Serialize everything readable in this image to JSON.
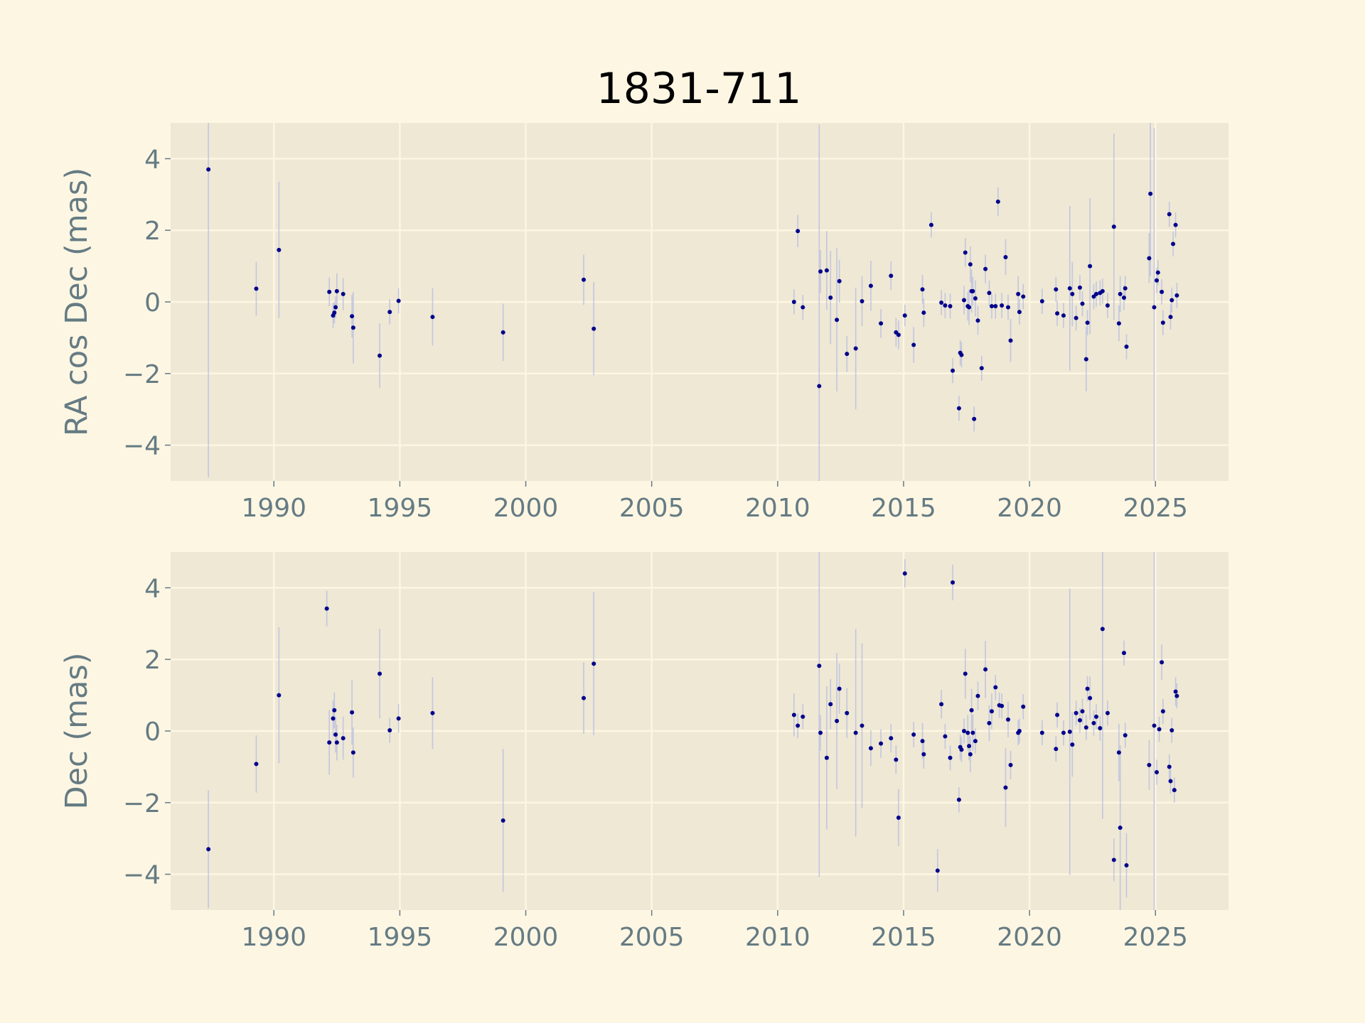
{
  "figure": {
    "title": "1831-711",
    "background": "#fdf6e3",
    "axes_background": "#eee8d5",
    "grid_color": "#fdf6e3",
    "marker_color": "#00008b",
    "errorbar_color": "#b4bbe0",
    "text_color": "#657b83"
  },
  "chart_data": [
    {
      "type": "scatter",
      "ylabel": "RA cos Dec (mas)",
      "xlim": [
        1985.9,
        2027.9
      ],
      "ylim": [
        -5,
        5
      ],
      "xticks": [
        1990,
        1995,
        2000,
        2005,
        2010,
        2015,
        2020,
        2025
      ],
      "yticks": [
        4,
        2,
        0,
        -2,
        -4
      ],
      "ytick_labels": [
        "4",
        "2",
        "0",
        "−2",
        "−4"
      ],
      "grid": true,
      "points": [
        {
          "x": 1987.4,
          "y": 3.7,
          "err": 8.6
        },
        {
          "x": 1989.3,
          "y": 0.37,
          "err": 0.75
        },
        {
          "x": 1990.2,
          "y": 1.45,
          "err": 1.9
        },
        {
          "x": 1992.2,
          "y": 0.28,
          "err": 0.4
        },
        {
          "x": 1992.35,
          "y": -0.38,
          "err": 0.35
        },
        {
          "x": 1992.4,
          "y": -0.3,
          "err": 0.3
        },
        {
          "x": 1992.45,
          "y": -0.15,
          "err": 0.3
        },
        {
          "x": 1992.5,
          "y": 0.3,
          "err": 0.5
        },
        {
          "x": 1992.75,
          "y": 0.22,
          "err": 0.45
        },
        {
          "x": 1993.1,
          "y": -0.4,
          "err": 0.6
        },
        {
          "x": 1993.15,
          "y": -0.72,
          "err": 1.0
        },
        {
          "x": 1994.2,
          "y": -1.5,
          "err": 0.9
        },
        {
          "x": 1994.6,
          "y": -0.28,
          "err": 0.35
        },
        {
          "x": 1994.95,
          "y": 0.03,
          "err": 0.35
        },
        {
          "x": 1996.3,
          "y": -0.42,
          "err": 0.8
        },
        {
          "x": 1999.1,
          "y": -0.85,
          "err": 0.8
        },
        {
          "x": 2002.3,
          "y": 0.62,
          "err": 0.7
        },
        {
          "x": 2002.7,
          "y": -0.75,
          "err": 1.3
        },
        {
          "x": 2010.65,
          "y": 0.0,
          "err": 0.35
        },
        {
          "x": 2010.8,
          "y": 1.98,
          "err": 0.45
        },
        {
          "x": 2011.0,
          "y": -0.15,
          "err": 0.35
        },
        {
          "x": 2011.65,
          "y": -2.35,
          "err": 7.3
        },
        {
          "x": 2011.7,
          "y": 0.85,
          "err": 0.6
        },
        {
          "x": 2011.95,
          "y": 0.88,
          "err": 1.1
        },
        {
          "x": 2012.1,
          "y": 0.12,
          "err": 1.3
        },
        {
          "x": 2012.35,
          "y": -0.5,
          "err": 2.0
        },
        {
          "x": 2012.45,
          "y": 0.58,
          "err": 0.6
        },
        {
          "x": 2012.75,
          "y": -1.45,
          "err": 0.5
        },
        {
          "x": 2013.1,
          "y": -1.3,
          "err": 1.7
        },
        {
          "x": 2013.35,
          "y": 0.02,
          "err": 0.7
        },
        {
          "x": 2013.7,
          "y": 0.45,
          "err": 0.7
        },
        {
          "x": 2014.1,
          "y": -0.6,
          "err": 0.4
        },
        {
          "x": 2014.5,
          "y": 0.73,
          "err": 0.4
        },
        {
          "x": 2014.7,
          "y": -0.85,
          "err": 0.4
        },
        {
          "x": 2014.8,
          "y": -0.92,
          "err": 0.4
        },
        {
          "x": 2015.05,
          "y": -0.38,
          "err": 0.3
        },
        {
          "x": 2015.4,
          "y": -1.2,
          "err": 0.5
        },
        {
          "x": 2015.75,
          "y": 0.35,
          "err": 0.4
        },
        {
          "x": 2015.8,
          "y": -0.3,
          "err": 0.4
        },
        {
          "x": 2016.1,
          "y": 2.15,
          "err": 0.35
        },
        {
          "x": 2016.5,
          "y": -0.02,
          "err": 0.35
        },
        {
          "x": 2016.65,
          "y": -0.1,
          "err": 0.35
        },
        {
          "x": 2016.85,
          "y": -0.12,
          "err": 0.35
        },
        {
          "x": 2016.95,
          "y": -1.92,
          "err": 0.35
        },
        {
          "x": 2017.2,
          "y": -2.97,
          "err": 0.35
        },
        {
          "x": 2017.25,
          "y": -1.42,
          "err": 0.35
        },
        {
          "x": 2017.3,
          "y": -1.48,
          "err": 0.35
        },
        {
          "x": 2017.4,
          "y": 0.05,
          "err": 0.4
        },
        {
          "x": 2017.45,
          "y": 1.38,
          "err": 0.4
        },
        {
          "x": 2017.55,
          "y": -0.12,
          "err": 0.4
        },
        {
          "x": 2017.6,
          "y": -0.15,
          "err": 0.5
        },
        {
          "x": 2017.65,
          "y": 1.05,
          "err": 0.5
        },
        {
          "x": 2017.7,
          "y": 0.3,
          "err": 0.6
        },
        {
          "x": 2017.75,
          "y": 0.3,
          "err": 0.4
        },
        {
          "x": 2017.8,
          "y": -3.27,
          "err": 0.35
        },
        {
          "x": 2017.85,
          "y": 0.1,
          "err": 0.5
        },
        {
          "x": 2017.95,
          "y": -0.52,
          "err": 0.4
        },
        {
          "x": 2018.1,
          "y": -1.85,
          "err": 0.35
        },
        {
          "x": 2018.25,
          "y": 0.92,
          "err": 0.4
        },
        {
          "x": 2018.4,
          "y": 0.25,
          "err": 0.35
        },
        {
          "x": 2018.5,
          "y": -0.12,
          "err": 0.35
        },
        {
          "x": 2018.65,
          "y": -0.12,
          "err": 0.35
        },
        {
          "x": 2018.75,
          "y": 2.8,
          "err": 0.4
        },
        {
          "x": 2018.9,
          "y": -0.1,
          "err": 0.35
        },
        {
          "x": 2019.05,
          "y": 1.25,
          "err": 0.5
        },
        {
          "x": 2019.15,
          "y": -0.15,
          "err": 0.35
        },
        {
          "x": 2019.25,
          "y": -1.08,
          "err": 0.6
        },
        {
          "x": 2019.55,
          "y": 0.22,
          "err": 0.5
        },
        {
          "x": 2019.6,
          "y": -0.28,
          "err": 0.35
        },
        {
          "x": 2019.75,
          "y": 0.15,
          "err": 0.35
        },
        {
          "x": 2020.5,
          "y": 0.02,
          "err": 0.35
        },
        {
          "x": 2021.05,
          "y": 0.35,
          "err": 0.35
        },
        {
          "x": 2021.1,
          "y": -0.32,
          "err": 0.35
        },
        {
          "x": 2021.35,
          "y": -0.38,
          "err": 0.35
        },
        {
          "x": 2021.6,
          "y": 0.38,
          "err": 2.3
        },
        {
          "x": 2021.7,
          "y": 0.22,
          "err": 0.9
        },
        {
          "x": 2021.85,
          "y": -0.45,
          "err": 0.35
        },
        {
          "x": 2022.0,
          "y": 0.4,
          "err": 0.35
        },
        {
          "x": 2022.1,
          "y": -0.05,
          "err": 0.35
        },
        {
          "x": 2022.25,
          "y": -1.6,
          "err": 0.9
        },
        {
          "x": 2022.3,
          "y": -0.58,
          "err": 0.35
        },
        {
          "x": 2022.4,
          "y": 1.0,
          "err": 1.9
        },
        {
          "x": 2022.55,
          "y": 0.15,
          "err": 0.35
        },
        {
          "x": 2022.65,
          "y": 0.22,
          "err": 0.35
        },
        {
          "x": 2022.8,
          "y": 0.25,
          "err": 0.35
        },
        {
          "x": 2022.9,
          "y": 0.3,
          "err": 0.35
        },
        {
          "x": 2023.1,
          "y": -0.1,
          "err": 0.35
        },
        {
          "x": 2023.35,
          "y": 2.1,
          "err": 2.6
        },
        {
          "x": 2023.55,
          "y": -0.6,
          "err": 0.5
        },
        {
          "x": 2023.6,
          "y": 0.22,
          "err": 0.5
        },
        {
          "x": 2023.75,
          "y": 0.12,
          "err": 0.35
        },
        {
          "x": 2023.8,
          "y": 0.38,
          "err": 0.35
        },
        {
          "x": 2023.85,
          "y": -1.25,
          "err": 0.35
        },
        {
          "x": 2024.75,
          "y": 1.22,
          "err": 0.7
        },
        {
          "x": 2024.8,
          "y": 3.02,
          "err": 2.3
        },
        {
          "x": 2024.95,
          "y": -0.15,
          "err": 5.0
        },
        {
          "x": 2025.05,
          "y": 0.6,
          "err": 0.35
        },
        {
          "x": 2025.1,
          "y": 0.82,
          "err": 0.35
        },
        {
          "x": 2025.25,
          "y": 0.28,
          "err": 0.35
        },
        {
          "x": 2025.3,
          "y": -0.58,
          "err": 0.35
        },
        {
          "x": 2025.55,
          "y": 2.45,
          "err": 0.35
        },
        {
          "x": 2025.6,
          "y": -0.42,
          "err": 0.35
        },
        {
          "x": 2025.65,
          "y": 0.05,
          "err": 0.35
        },
        {
          "x": 2025.7,
          "y": 1.62,
          "err": 0.35
        },
        {
          "x": 2025.8,
          "y": 2.15,
          "err": 0.35
        },
        {
          "x": 2025.85,
          "y": 0.18,
          "err": 0.35
        }
      ]
    },
    {
      "type": "scatter",
      "ylabel": "Dec (mas)",
      "xlim": [
        1985.9,
        2027.9
      ],
      "ylim": [
        -5,
        5
      ],
      "xticks": [
        1990,
        1995,
        2000,
        2005,
        2010,
        2015,
        2020,
        2025
      ],
      "yticks": [
        4,
        2,
        0,
        -2,
        -4
      ],
      "ytick_labels": [
        "4",
        "2",
        "0",
        "−2",
        "−4"
      ],
      "grid": true,
      "points": [
        {
          "x": 1987.4,
          "y": -3.3,
          "err": 1.65
        },
        {
          "x": 1989.3,
          "y": -0.92,
          "err": 0.8
        },
        {
          "x": 1990.2,
          "y": 1.0,
          "err": 1.9
        },
        {
          "x": 1992.1,
          "y": 3.42,
          "err": 0.5
        },
        {
          "x": 1992.2,
          "y": -0.32,
          "err": 0.9
        },
        {
          "x": 1992.35,
          "y": 0.35,
          "err": 0.5
        },
        {
          "x": 1992.4,
          "y": 0.58,
          "err": 0.5
        },
        {
          "x": 1992.45,
          "y": -0.1,
          "err": 0.5
        },
        {
          "x": 1992.5,
          "y": -0.32,
          "err": 0.5
        },
        {
          "x": 1992.75,
          "y": -0.2,
          "err": 0.6
        },
        {
          "x": 1993.1,
          "y": 0.52,
          "err": 0.9
        },
        {
          "x": 1993.15,
          "y": -0.6,
          "err": 0.7
        },
        {
          "x": 1994.2,
          "y": 1.6,
          "err": 1.25
        },
        {
          "x": 1994.6,
          "y": 0.02,
          "err": 0.35
        },
        {
          "x": 1994.95,
          "y": 0.35,
          "err": 0.4
        },
        {
          "x": 1996.3,
          "y": 0.5,
          "err": 1.0
        },
        {
          "x": 1999.1,
          "y": -2.5,
          "err": 2.0
        },
        {
          "x": 2002.3,
          "y": 0.92,
          "err": 1.0
        },
        {
          "x": 2002.7,
          "y": 1.88,
          "err": 2.0
        },
        {
          "x": 2010.65,
          "y": 0.45,
          "err": 0.6
        },
        {
          "x": 2010.8,
          "y": 0.15,
          "err": 0.35
        },
        {
          "x": 2011.0,
          "y": 0.4,
          "err": 0.35
        },
        {
          "x": 2011.65,
          "y": 1.82,
          "err": 5.9
        },
        {
          "x": 2011.7,
          "y": -0.05,
          "err": 0.5
        },
        {
          "x": 2011.95,
          "y": -0.75,
          "err": 2.0
        },
        {
          "x": 2012.1,
          "y": 0.75,
          "err": 0.7
        },
        {
          "x": 2012.35,
          "y": 0.28,
          "err": 1.9
        },
        {
          "x": 2012.45,
          "y": 1.18,
          "err": 0.7
        },
        {
          "x": 2012.75,
          "y": 0.5,
          "err": 0.7
        },
        {
          "x": 2013.1,
          "y": -0.05,
          "err": 2.9
        },
        {
          "x": 2013.35,
          "y": 0.15,
          "err": 2.3
        },
        {
          "x": 2013.7,
          "y": -0.48,
          "err": 0.5
        },
        {
          "x": 2014.1,
          "y": -0.35,
          "err": 0.4
        },
        {
          "x": 2014.5,
          "y": -0.2,
          "err": 0.4
        },
        {
          "x": 2014.7,
          "y": -0.8,
          "err": 0.4
        },
        {
          "x": 2014.8,
          "y": -2.42,
          "err": 0.8
        },
        {
          "x": 2015.05,
          "y": 4.4,
          "err": 0.4
        },
        {
          "x": 2015.4,
          "y": -0.1,
          "err": 0.35
        },
        {
          "x": 2015.75,
          "y": -0.28,
          "err": 0.5
        },
        {
          "x": 2015.8,
          "y": -0.65,
          "err": 0.4
        },
        {
          "x": 2016.35,
          "y": -3.9,
          "err": 0.6
        },
        {
          "x": 2016.5,
          "y": 0.75,
          "err": 0.4
        },
        {
          "x": 2016.65,
          "y": -0.15,
          "err": 0.35
        },
        {
          "x": 2016.85,
          "y": -0.75,
          "err": 0.35
        },
        {
          "x": 2016.95,
          "y": 4.15,
          "err": 0.5
        },
        {
          "x": 2017.2,
          "y": -1.92,
          "err": 0.35
        },
        {
          "x": 2017.25,
          "y": -0.45,
          "err": 0.35
        },
        {
          "x": 2017.3,
          "y": -0.52,
          "err": 0.35
        },
        {
          "x": 2017.4,
          "y": 0.0,
          "err": 0.35
        },
        {
          "x": 2017.45,
          "y": 1.6,
          "err": 0.7
        },
        {
          "x": 2017.55,
          "y": -0.05,
          "err": 0.5
        },
        {
          "x": 2017.6,
          "y": -0.42,
          "err": 0.4
        },
        {
          "x": 2017.65,
          "y": -0.65,
          "err": 0.5
        },
        {
          "x": 2017.7,
          "y": 0.58,
          "err": 0.6
        },
        {
          "x": 2017.75,
          "y": -0.05,
          "err": 0.5
        },
        {
          "x": 2017.85,
          "y": -0.28,
          "err": 0.35
        },
        {
          "x": 2017.95,
          "y": 0.98,
          "err": 0.4
        },
        {
          "x": 2018.25,
          "y": 1.72,
          "err": 0.8
        },
        {
          "x": 2018.4,
          "y": 0.22,
          "err": 0.5
        },
        {
          "x": 2018.5,
          "y": 0.55,
          "err": 0.5
        },
        {
          "x": 2018.65,
          "y": 1.22,
          "err": 0.35
        },
        {
          "x": 2018.8,
          "y": 0.72,
          "err": 0.35
        },
        {
          "x": 2018.9,
          "y": 0.7,
          "err": 0.35
        },
        {
          "x": 2019.05,
          "y": -1.58,
          "err": 1.1
        },
        {
          "x": 2019.15,
          "y": 0.32,
          "err": 0.5
        },
        {
          "x": 2019.25,
          "y": -0.95,
          "err": 0.4
        },
        {
          "x": 2019.55,
          "y": -0.05,
          "err": 0.35
        },
        {
          "x": 2019.6,
          "y": 0.0,
          "err": 0.35
        },
        {
          "x": 2019.75,
          "y": 0.68,
          "err": 0.35
        },
        {
          "x": 2020.5,
          "y": -0.05,
          "err": 0.35
        },
        {
          "x": 2021.05,
          "y": -0.5,
          "err": 0.35
        },
        {
          "x": 2021.1,
          "y": 0.45,
          "err": 0.35
        },
        {
          "x": 2021.35,
          "y": -0.05,
          "err": 0.35
        },
        {
          "x": 2021.6,
          "y": -0.02,
          "err": 4.0
        },
        {
          "x": 2021.7,
          "y": -0.38,
          "err": 0.9
        },
        {
          "x": 2021.85,
          "y": 0.5,
          "err": 0.35
        },
        {
          "x": 2022.0,
          "y": 0.3,
          "err": 0.35
        },
        {
          "x": 2022.1,
          "y": 0.55,
          "err": 0.35
        },
        {
          "x": 2022.25,
          "y": 0.1,
          "err": 0.35
        },
        {
          "x": 2022.3,
          "y": 1.18,
          "err": 0.35
        },
        {
          "x": 2022.4,
          "y": 0.92,
          "err": 0.6
        },
        {
          "x": 2022.55,
          "y": 0.22,
          "err": 0.35
        },
        {
          "x": 2022.65,
          "y": 0.4,
          "err": 0.35
        },
        {
          "x": 2022.8,
          "y": 0.08,
          "err": 0.35
        },
        {
          "x": 2022.9,
          "y": 2.85,
          "err": 5.3
        },
        {
          "x": 2023.1,
          "y": 0.5,
          "err": 0.35
        },
        {
          "x": 2023.35,
          "y": -3.6,
          "err": 0.6
        },
        {
          "x": 2023.55,
          "y": -0.6,
          "err": 0.8
        },
        {
          "x": 2023.6,
          "y": -2.7,
          "err": 2.3
        },
        {
          "x": 2023.75,
          "y": 2.18,
          "err": 0.35
        },
        {
          "x": 2023.8,
          "y": -0.12,
          "err": 0.35
        },
        {
          "x": 2023.85,
          "y": -3.75,
          "err": 0.9
        },
        {
          "x": 2024.75,
          "y": -0.95,
          "err": 0.7
        },
        {
          "x": 2024.95,
          "y": 0.15,
          "err": 5.2
        },
        {
          "x": 2025.05,
          "y": -1.15,
          "err": 0.35
        },
        {
          "x": 2025.15,
          "y": 0.05,
          "err": 0.35
        },
        {
          "x": 2025.25,
          "y": 1.92,
          "err": 0.5
        },
        {
          "x": 2025.3,
          "y": 0.55,
          "err": 0.35
        },
        {
          "x": 2025.55,
          "y": -1.0,
          "err": 0.35
        },
        {
          "x": 2025.6,
          "y": -1.4,
          "err": 0.35
        },
        {
          "x": 2025.65,
          "y": 0.02,
          "err": 0.35
        },
        {
          "x": 2025.75,
          "y": -1.65,
          "err": 0.35
        },
        {
          "x": 2025.8,
          "y": 1.1,
          "err": 0.4
        },
        {
          "x": 2025.85,
          "y": 0.98,
          "err": 0.35
        }
      ]
    }
  ]
}
